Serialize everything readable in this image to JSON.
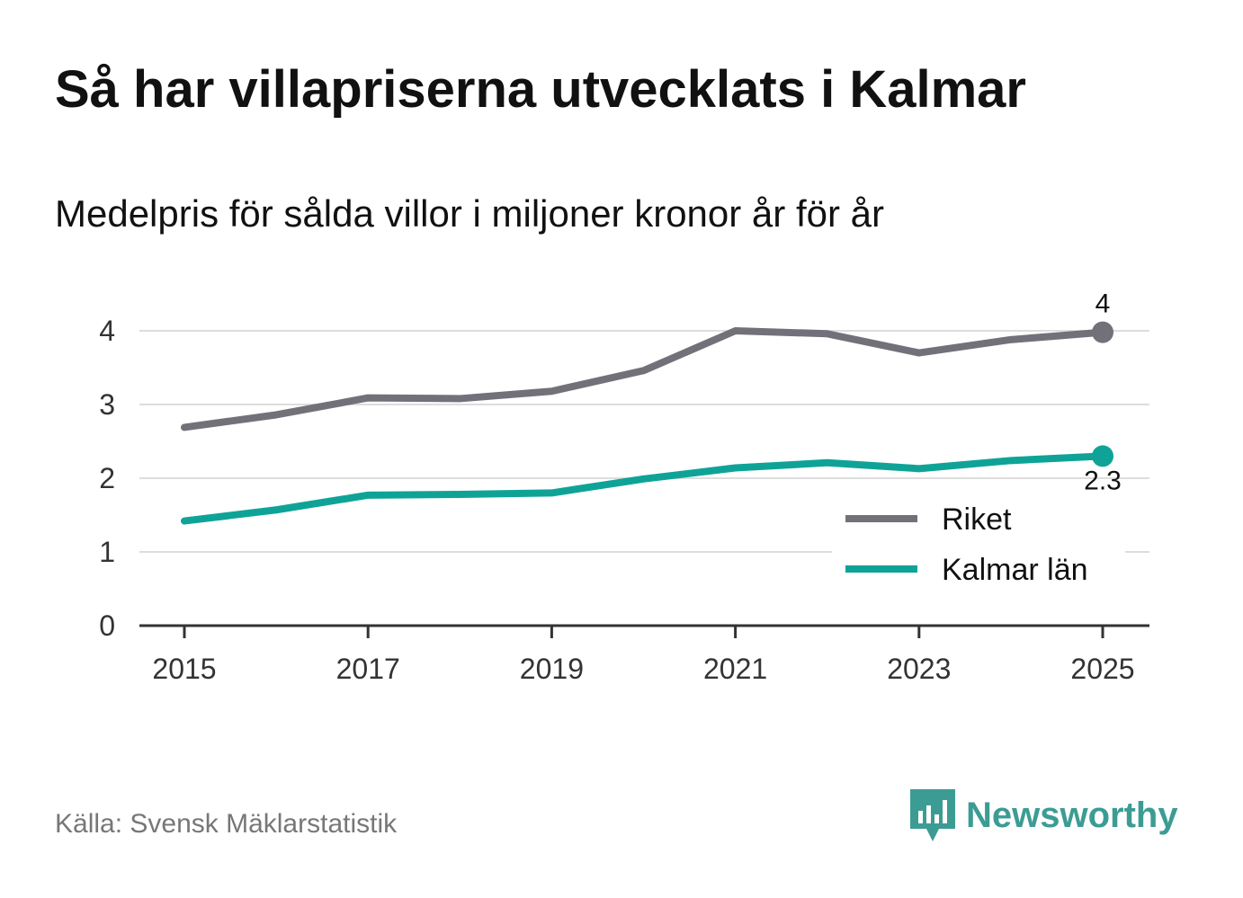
{
  "title": "Så har villapriserna utvecklats i Kalmar",
  "subtitle": "Medelpris för sålda villor i miljoner kronor år för år",
  "source": "Källa: Svensk Mäklarstatistik",
  "brand": {
    "name": "Newsworthy",
    "icon": "newsworthy-logo-icon",
    "color": "#3c9c94"
  },
  "chart_data": {
    "type": "line",
    "title": "Så har villapriserna utvecklats i Kalmar",
    "subtitle": "Medelpris för sålda villor i miljoner kronor år för år",
    "xlabel": "",
    "ylabel": "",
    "x": [
      2015,
      2016,
      2017,
      2018,
      2019,
      2020,
      2021,
      2022,
      2023,
      2024,
      2025
    ],
    "x_ticks": [
      "2015",
      "2017",
      "2019",
      "2021",
      "2023",
      "2025"
    ],
    "y_ticks": [
      "0",
      "1",
      "2",
      "3",
      "4"
    ],
    "ylim": [
      0,
      4.4
    ],
    "grid": true,
    "legend_position": "bottom-right",
    "series": [
      {
        "name": "Riket",
        "color": "#727179",
        "values": [
          2.69,
          2.86,
          3.09,
          3.08,
          3.18,
          3.46,
          4.0,
          3.96,
          3.7,
          3.88,
          3.98
        ],
        "end_label": "4"
      },
      {
        "name": "Kalmar län",
        "color": "#0fa398",
        "values": [
          1.42,
          1.57,
          1.77,
          1.78,
          1.8,
          1.99,
          2.14,
          2.21,
          2.13,
          2.24,
          2.3
        ],
        "end_label": "2.3"
      }
    ]
  }
}
